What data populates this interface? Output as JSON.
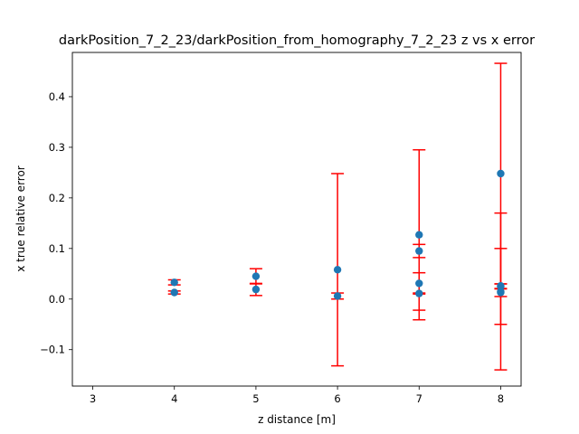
{
  "chart_data": {
    "type": "scatter",
    "title": "darkPosition_7_2_23/darkPosition_from_homography_7_2_23 z vs x error",
    "xlabel": "z distance [m]",
    "ylabel": "x true relative error",
    "xlim": [
      2.75,
      8.25
    ],
    "ylim": [
      -0.172,
      0.4875
    ],
    "xticks": [
      3,
      4,
      5,
      6,
      7,
      8
    ],
    "yticks": [
      -0.1,
      0.0,
      0.1,
      0.2,
      0.3,
      0.4
    ],
    "xtick_labels": [
      "3",
      "4",
      "5",
      "6",
      "7",
      "8"
    ],
    "ytick_labels": [
      "−0.1",
      "0.0",
      "0.1",
      "0.2",
      "0.3",
      "0.4"
    ],
    "grid": false,
    "legend": "none",
    "point_color": "#1f77b4",
    "errorbar_color": "#ff0000",
    "points": [
      {
        "x": 4,
        "y": 0.033,
        "err_low": 0.028,
        "err_high": 0.038
      },
      {
        "x": 4,
        "y": 0.013,
        "err_low": 0.01,
        "err_high": 0.016
      },
      {
        "x": 5,
        "y": 0.045,
        "err_low": 0.03,
        "err_high": 0.06
      },
      {
        "x": 5,
        "y": 0.019,
        "err_low": 0.007,
        "err_high": 0.031
      },
      {
        "x": 6,
        "y": 0.058,
        "err_low": -0.132,
        "err_high": 0.248
      },
      {
        "x": 6,
        "y": 0.006,
        "err_low": 0.0,
        "err_high": 0.012
      },
      {
        "x": 7,
        "y": 0.127,
        "err_low": -0.041,
        "err_high": 0.295
      },
      {
        "x": 7,
        "y": 0.095,
        "err_low": 0.082,
        "err_high": 0.108
      },
      {
        "x": 7,
        "y": 0.031,
        "err_low": -0.022,
        "err_high": 0.052
      },
      {
        "x": 7,
        "y": 0.011,
        "err_low": 0.01,
        "err_high": 0.012
      },
      {
        "x": 8,
        "y": 0.248,
        "err_low": 0.03,
        "err_high": 0.466
      },
      {
        "x": 8,
        "y": 0.025,
        "err_low": -0.05,
        "err_high": 0.1
      },
      {
        "x": 8,
        "y": 0.015,
        "err_low": -0.14,
        "err_high": 0.17
      },
      {
        "x": 8,
        "y": 0.026,
        "err_low": 0.02,
        "err_high": 0.03
      },
      {
        "x": 8,
        "y": 0.013,
        "err_low": 0.005,
        "err_high": 0.021
      }
    ]
  }
}
